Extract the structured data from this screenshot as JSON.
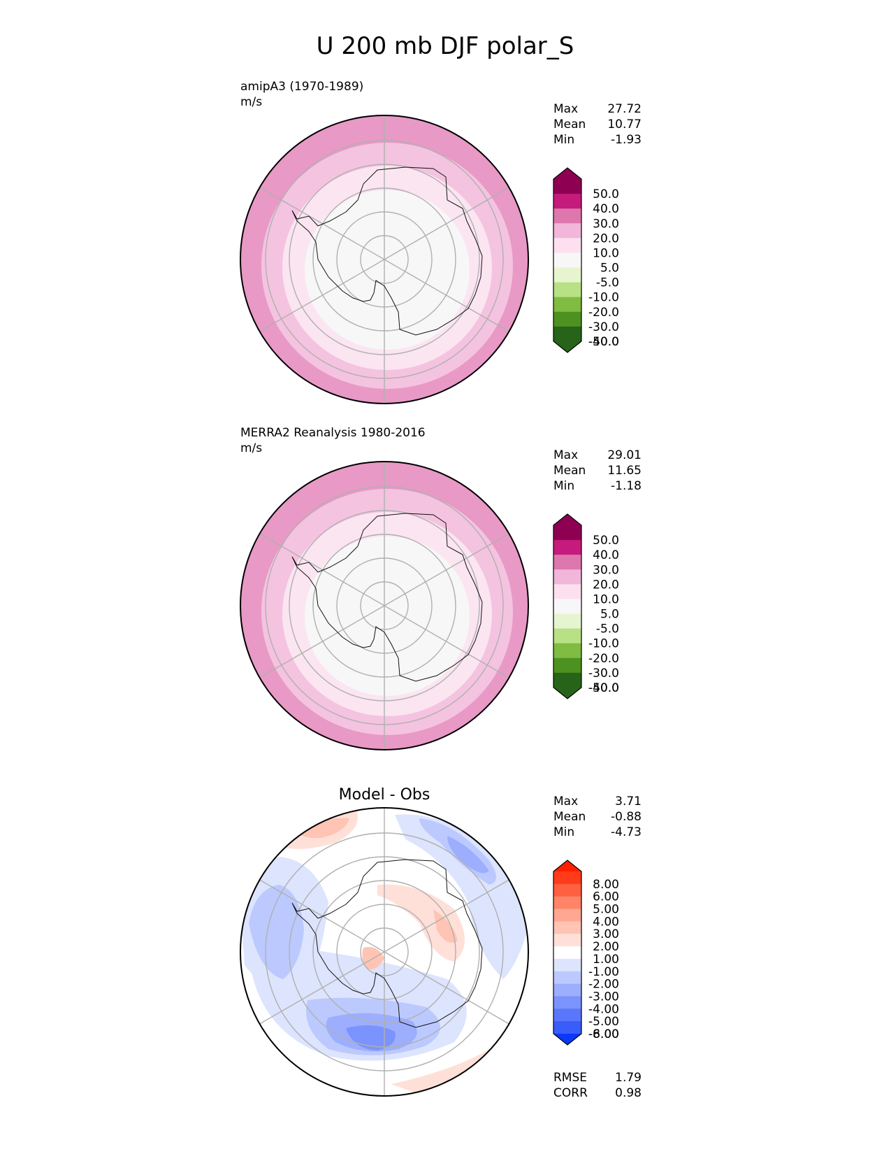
{
  "title": "U 200 mb DJF polar_S",
  "panels": [
    {
      "name": "test",
      "label": "amipA3 (1970-1989)",
      "units": "m/s",
      "stats": [
        {
          "label": "Max",
          "value": "27.72"
        },
        {
          "label": "Mean",
          "value": "10.77"
        },
        {
          "label": "Min",
          "value": "-1.93"
        }
      ],
      "colorbar": {
        "labels": [
          "50.0",
          "40.0",
          "30.0",
          "20.0",
          "10.0",
          "5.0",
          "-5.0",
          "-10.0",
          "-20.0",
          "-30.0",
          "-40.0",
          "-50.0"
        ],
        "colors": [
          "#8e0152",
          "#c51b7d",
          "#de77ae",
          "#f1b6da",
          "#fde0ef",
          "#f7f7f7",
          "#e6f5d0",
          "#b8e186",
          "#7fbc41",
          "#4d9221",
          "#276419"
        ],
        "extend_top": "#8e0152",
        "extend_bottom": "#276419"
      },
      "rings": [
        "#e899c6",
        "#f4c3e0",
        "#fbe5f1",
        "#f7f7f7"
      ]
    },
    {
      "name": "reference",
      "label": "MERRA2 Reanalysis 1980-2016",
      "units": "m/s",
      "stats": [
        {
          "label": "Max",
          "value": "29.01"
        },
        {
          "label": "Mean",
          "value": "11.65"
        },
        {
          "label": "Min",
          "value": "-1.18"
        }
      ],
      "colorbar": {
        "labels": [
          "50.0",
          "40.0",
          "30.0",
          "20.0",
          "10.0",
          "5.0",
          "-5.0",
          "-10.0",
          "-20.0",
          "-30.0",
          "-40.0",
          "-50.0"
        ],
        "colors": [
          "#8e0152",
          "#c51b7d",
          "#de77ae",
          "#f1b6da",
          "#fde0ef",
          "#f7f7f7",
          "#e6f5d0",
          "#b8e186",
          "#7fbc41",
          "#4d9221",
          "#276419"
        ],
        "extend_top": "#8e0152",
        "extend_bottom": "#276419"
      },
      "rings": [
        "#e899c6",
        "#f4c3e0",
        "#fbe5f1",
        "#f7f7f7"
      ]
    },
    {
      "name": "difference",
      "label": "Model - Obs",
      "units": "",
      "stats": [
        {
          "label": "Max",
          "value": "3.71"
        },
        {
          "label": "Mean",
          "value": "-0.88"
        },
        {
          "label": "Min",
          "value": "-4.73"
        }
      ],
      "colorbar": {
        "labels": [
          "8.00",
          "6.00",
          "5.00",
          "4.00",
          "3.00",
          "2.00",
          "1.00",
          "-1.00",
          "-2.00",
          "-3.00",
          "-4.00",
          "-5.00",
          "-6.00",
          "-8.00"
        ],
        "colors": [
          "#ff3b1a",
          "#ff6040",
          "#ff8468",
          "#ffa790",
          "#ffc4b4",
          "#ffe0d8",
          "#ffffff",
          "#dde4fe",
          "#bcc9fe",
          "#9caefd",
          "#7b93fc",
          "#5a77fb",
          "#3a5cfa"
        ],
        "extend_top": "#ff2000",
        "extend_bottom": "#0a38f8"
      },
      "footer_stats": [
        {
          "label": "RMSE",
          "value": "1.79"
        },
        {
          "label": "CORR",
          "value": "0.98"
        }
      ]
    }
  ],
  "chart_data": [
    {
      "type": "heatmap",
      "title": "amipA3 (1970-1989)",
      "units": "m/s",
      "projection": "south polar stereographic",
      "contour_levels": [
        -50,
        -40,
        -30,
        -20,
        -10,
        -5,
        5,
        10,
        20,
        30,
        40,
        50
      ],
      "stats": {
        "max": 27.72,
        "mean": 10.77,
        "min": -1.93
      }
    },
    {
      "type": "heatmap",
      "title": "MERRA2 Reanalysis 1980-2016",
      "units": "m/s",
      "projection": "south polar stereographic",
      "contour_levels": [
        -50,
        -40,
        -30,
        -20,
        -10,
        -5,
        5,
        10,
        20,
        30,
        40,
        50
      ],
      "stats": {
        "max": 29.01,
        "mean": 11.65,
        "min": -1.18
      }
    },
    {
      "type": "heatmap",
      "title": "Model - Obs",
      "projection": "south polar stereographic",
      "contour_levels": [
        -8,
        -6,
        -5,
        -4,
        -3,
        -2,
        -1,
        1,
        2,
        3,
        4,
        5,
        6,
        8
      ],
      "stats": {
        "max": 3.71,
        "mean": -0.88,
        "min": -4.73,
        "rmse": 1.79,
        "corr": 0.98
      }
    }
  ]
}
